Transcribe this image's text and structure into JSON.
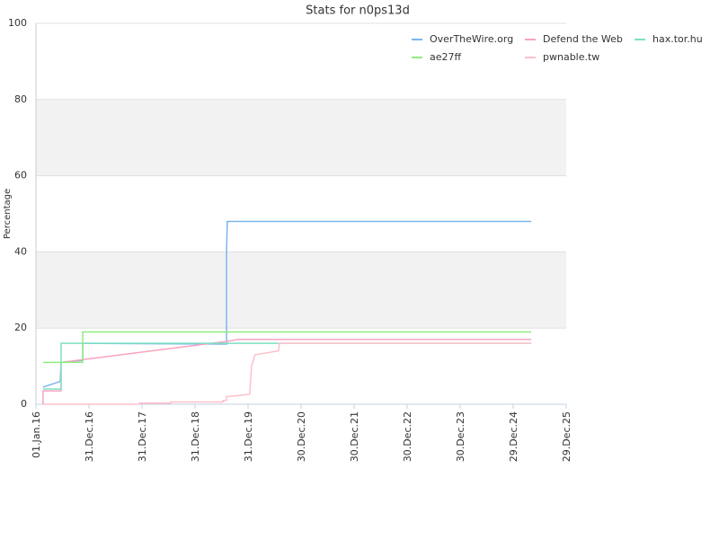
{
  "chart_data": {
    "type": "line",
    "title": "Stats for n0ps13d",
    "y_label": "Percentage",
    "xlim": [
      "2016-01-01",
      "2025-12-29"
    ],
    "xticks": [
      {
        "value": "2016-01-01",
        "label": "01.Jan.16"
      },
      {
        "value": "2016-12-31",
        "label": "31.Dec.16"
      },
      {
        "value": "2017-12-31",
        "label": "31.Dec.17"
      },
      {
        "value": "2018-12-31",
        "label": "31.Dec.18"
      },
      {
        "value": "2019-12-31",
        "label": "31.Dec.19"
      },
      {
        "value": "2020-12-30",
        "label": "30.Dec.20"
      },
      {
        "value": "2021-12-30",
        "label": "30.Dec.21"
      },
      {
        "value": "2022-12-30",
        "label": "30.Dec.22"
      },
      {
        "value": "2023-12-30",
        "label": "30.Dec.23"
      },
      {
        "value": "2024-12-29",
        "label": "29.Dec.24"
      },
      {
        "value": "2025-12-29",
        "label": "29.Dec.25"
      }
    ],
    "ylim": [
      0,
      100
    ],
    "yticks": [
      0,
      20,
      40,
      60,
      80,
      100
    ],
    "grid": true,
    "bands": [
      [
        20,
        40
      ],
      [
        60,
        80
      ]
    ],
    "legend": "top-right",
    "series": [
      {
        "name": "OverTheWire.org",
        "color": "#7cb5ec",
        "x": [
          "2016-02-19",
          "2016-06-16",
          "2016-06-22",
          "2016-11-18",
          "2016-11-18",
          "2019-08-05",
          "2019-08-05",
          "2019-08-10",
          "2025-05-02"
        ],
        "values": [
          4.5,
          6,
          11,
          11.5,
          16,
          15.8,
          40,
          48,
          48
        ]
      },
      {
        "name": "Defend the Web",
        "color": "#f7a3c0",
        "x": [
          "2016-02-19",
          "2016-02-19",
          "2016-06-22",
          "2016-06-22",
          "2019-08-05",
          "2019-10-24",
          "2025-05-02"
        ],
        "values": [
          0,
          3.5,
          3.5,
          11,
          16.5,
          17,
          17
        ]
      },
      {
        "name": "hax.tor.hu",
        "color": "#7ce0c3",
        "x": [
          "2016-02-19",
          "2016-06-22",
          "2016-06-22",
          "2025-05-02"
        ],
        "values": [
          4,
          4,
          16,
          16
        ]
      },
      {
        "name": "ae27ff",
        "color": "#90ed7d",
        "x": [
          "2016-02-19",
          "2016-11-18",
          "2016-11-18",
          "2025-05-02"
        ],
        "values": [
          11,
          11,
          19,
          19
        ]
      },
      {
        "name": "pwnable.tw",
        "color": "#ffc0cb",
        "x": [
          "2016-02-19",
          "2017-12-12",
          "2017-12-12",
          "2018-07-17",
          "2018-07-17",
          "2019-07-11",
          "2019-07-11",
          "2019-08-05",
          "2019-08-05",
          "2020-01-11",
          "2020-01-24",
          "2020-02-17",
          "2020-07-28",
          "2020-08-03",
          "2025-05-02"
        ],
        "values": [
          0,
          0,
          0.3,
          0.3,
          0.6,
          0.6,
          1,
          1,
          2,
          2.6,
          10,
          13,
          14,
          16,
          16
        ]
      }
    ]
  }
}
